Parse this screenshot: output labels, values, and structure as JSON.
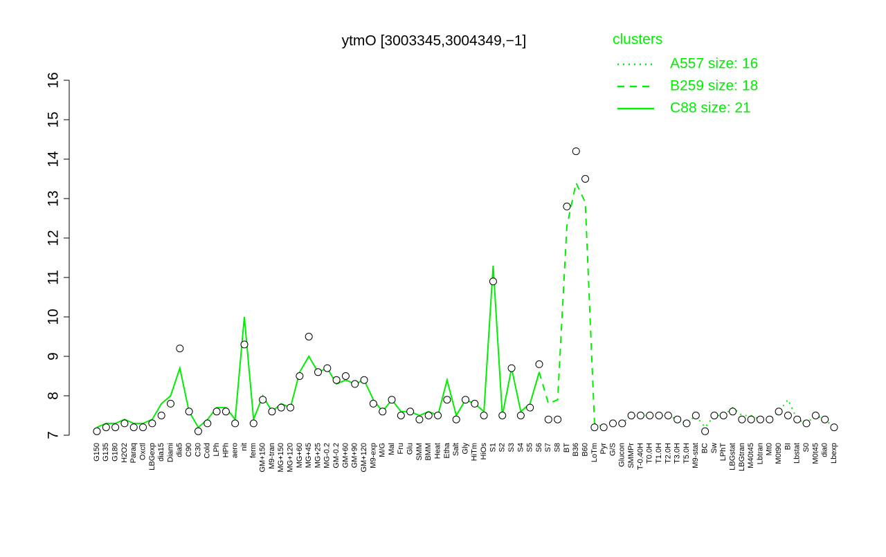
{
  "chart_data": {
    "type": "line",
    "title": "ytmO [3003345,3004349,−1]",
    "legend_title": "clusters",
    "legend_color": "#00ee00",
    "categories": [
      "G150",
      "G135",
      "G180",
      "H2O2",
      "Paraq",
      "Oxctl",
      "LBGexp",
      "dia15",
      "Diami",
      "dia5",
      "C90",
      "C30",
      "Cold",
      "LPh",
      "HPh",
      "aero",
      "nit",
      "ferm",
      "GM+150",
      "M9-tran",
      "MG+150",
      "MG+120",
      "MG+60",
      "MG+45",
      "MG+25",
      "MG-0.2",
      "GM-0.2",
      "GM+60",
      "GM+90",
      "GM+120",
      "M9-exp",
      "M/G",
      "Mal",
      "Fru",
      "Glu",
      "SMM",
      "BMM",
      "Heat",
      "Etha",
      "Salt",
      "Gly",
      "HiTm",
      "HiOs",
      "S1",
      "S2",
      "S3",
      "S4",
      "S5",
      "S6",
      "S7",
      "S8",
      "BT",
      "B36",
      "B60",
      "LoTm",
      "Pyr",
      "G/S",
      "Glucon",
      "SMMPr",
      "T-0.40H",
      "T0.0H",
      "T1.0H",
      "T2.0H",
      "T3.0H",
      "T5.0H",
      "M9-stat",
      "BC",
      "Sw",
      "LPhT",
      "LBGstat",
      "LBGtran",
      "M40t45",
      "Lbtran",
      "Mt0",
      "M0t90",
      "BI",
      "Lbstat",
      "S0",
      "M0t45",
      "dia0",
      "Lbexp"
    ],
    "points": {
      "values": [
        7.1,
        7.2,
        7.2,
        7.3,
        7.2,
        7.2,
        7.3,
        7.5,
        7.8,
        9.2,
        7.6,
        7.1,
        7.3,
        7.6,
        7.6,
        7.3,
        9.3,
        7.3,
        7.9,
        7.6,
        7.7,
        7.7,
        8.5,
        9.5,
        8.6,
        8.7,
        8.4,
        8.5,
        8.3,
        8.4,
        7.8,
        7.6,
        7.9,
        7.5,
        7.6,
        7.4,
        7.5,
        7.5,
        7.9,
        7.4,
        7.9,
        7.8,
        7.5,
        10.9,
        7.5,
        8.7,
        7.5,
        7.7,
        8.8,
        7.4,
        7.4,
        12.8,
        14.2,
        13.5,
        7.2,
        7.2,
        7.3,
        7.3,
        7.5,
        7.5,
        7.5,
        7.5,
        7.5,
        7.4,
        7.3,
        7.5,
        7.1,
        7.5,
        7.5,
        7.6,
        7.4,
        7.4,
        7.4,
        7.4,
        7.6,
        7.5,
        7.4,
        7.3,
        7.5,
        7.4,
        7.2
      ]
    },
    "series": [
      {
        "name": "A557 size: 16",
        "color": "#00ee00",
        "style": "dotted",
        "values": [
          null,
          null,
          null,
          null,
          null,
          null,
          null,
          null,
          null,
          null,
          null,
          null,
          null,
          null,
          null,
          null,
          null,
          null,
          null,
          null,
          null,
          null,
          null,
          null,
          null,
          null,
          null,
          null,
          null,
          null,
          null,
          null,
          null,
          null,
          null,
          null,
          null,
          null,
          null,
          null,
          null,
          null,
          null,
          null,
          null,
          null,
          null,
          null,
          null,
          null,
          null,
          null,
          null,
          null,
          7.3,
          7.2,
          7.3,
          7.3,
          7.5,
          7.5,
          7.5,
          7.5,
          7.5,
          7.4,
          7.3,
          7.5,
          7.2,
          7.5,
          7.5,
          7.7,
          7.5,
          7.5,
          7.4,
          7.4,
          7.6,
          7.9,
          7.4,
          7.3,
          7.5,
          7.4,
          7.2
        ]
      },
      {
        "name": "B259 size: 18",
        "color": "#00ee00",
        "style": "dashed",
        "values": [
          null,
          null,
          null,
          null,
          null,
          null,
          null,
          null,
          null,
          null,
          null,
          null,
          null,
          null,
          null,
          null,
          null,
          null,
          null,
          null,
          null,
          null,
          null,
          null,
          null,
          null,
          null,
          null,
          null,
          null,
          null,
          null,
          null,
          null,
          null,
          null,
          null,
          null,
          null,
          null,
          null,
          null,
          null,
          null,
          null,
          null,
          null,
          null,
          8.6,
          7.8,
          7.9,
          12.3,
          13.4,
          12.9,
          7.3,
          null,
          null,
          null,
          null,
          null,
          null,
          null,
          null,
          null,
          null,
          null,
          null,
          null,
          null,
          null,
          null,
          null,
          null,
          null,
          null,
          null,
          null,
          null,
          null,
          null,
          null
        ]
      },
      {
        "name": "C88 size: 21",
        "color": "#00ee00",
        "style": "solid",
        "values": [
          7.2,
          7.3,
          7.3,
          7.4,
          7.3,
          7.3,
          7.4,
          7.8,
          8.0,
          8.7,
          7.6,
          7.2,
          7.4,
          7.7,
          7.7,
          7.4,
          10.0,
          7.4,
          8.0,
          7.6,
          7.8,
          7.7,
          8.6,
          9.0,
          8.6,
          8.7,
          8.3,
          8.4,
          8.3,
          8.4,
          7.9,
          7.6,
          7.9,
          7.6,
          7.6,
          7.5,
          7.6,
          7.5,
          8.4,
          7.5,
          7.9,
          7.8,
          7.6,
          11.3,
          7.5,
          8.7,
          7.6,
          7.8,
          8.6,
          null,
          null,
          null,
          null,
          null,
          null,
          null,
          null,
          null,
          null,
          null,
          null,
          null,
          null,
          null,
          null,
          null,
          null,
          null,
          null,
          null,
          null,
          null,
          null,
          null,
          null,
          null,
          null,
          null,
          null,
          null,
          null
        ]
      }
    ],
    "ylim": [
      7,
      16
    ],
    "yticks": [
      7,
      8,
      9,
      10,
      11,
      12,
      13,
      14,
      15,
      16
    ]
  }
}
